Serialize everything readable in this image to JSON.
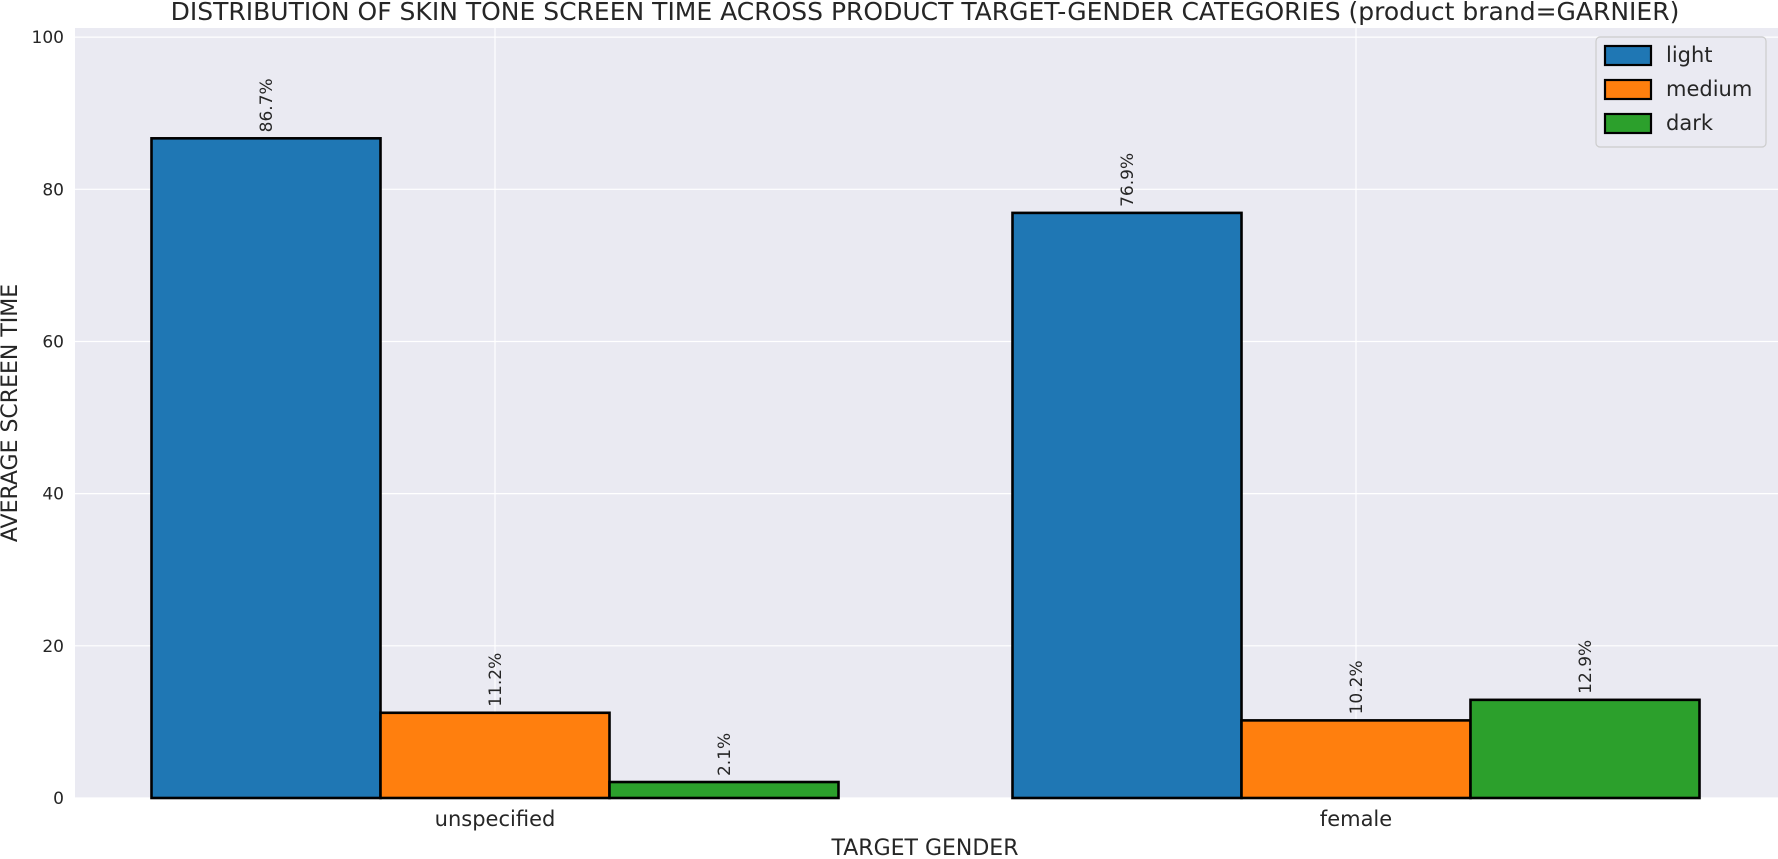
{
  "chart_data": {
    "type": "bar",
    "title": "DISTRIBUTION OF SKIN TONE SCREEN TIME ACROSS PRODUCT TARGET-GENDER CATEGORIES (product brand=GARNIER)",
    "xlabel": "TARGET GENDER",
    "ylabel": "AVERAGE SCREEN TIME",
    "categories": [
      "unspecified",
      "female"
    ],
    "series": [
      {
        "name": "light",
        "color": "#1f77b4",
        "values": [
          86.7,
          76.9
        ],
        "labels": [
          "86.7%",
          "76.9%"
        ]
      },
      {
        "name": "medium",
        "color": "#ff7f0e",
        "values": [
          11.2,
          10.2
        ],
        "labels": [
          "11.2%",
          "10.2%"
        ]
      },
      {
        "name": "dark",
        "color": "#2ca02c",
        "values": [
          2.1,
          12.9
        ],
        "labels": [
          "2.1%",
          "12.9%"
        ]
      }
    ],
    "ylim": [
      0,
      101.2
    ],
    "yticks": [
      0,
      20,
      40,
      60,
      80,
      100
    ],
    "grid": true,
    "legend_position": "top-right",
    "background": "#eaeaf2",
    "bar_edge_color": "#000000"
  }
}
